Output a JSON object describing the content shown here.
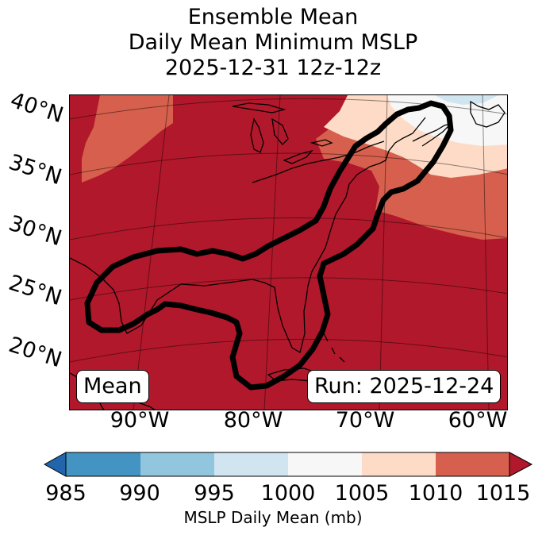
{
  "title": {
    "line1": "Ensemble Mean",
    "line2": "Daily Mean Minimum MSLP",
    "line3": "2025-12-31 12z-12z"
  },
  "map": {
    "lat_labels": [
      "40°N",
      "35°N",
      "30°N",
      "25°N",
      "20°N"
    ],
    "lon_labels": [
      "90°W",
      "80°W",
      "70°W",
      "60°W"
    ],
    "mean_label": "Mean",
    "run_label": "Run: 2025-12-24"
  },
  "colorbar": {
    "tick_labels": [
      "985",
      "990",
      "995",
      "1000",
      "1005",
      "1010",
      "1015"
    ],
    "title": "MSLP Daily Mean (mb)",
    "colors": [
      "#2166ac",
      "#4393c3",
      "#92c5de",
      "#d1e5f0",
      "#f7f7f7",
      "#fddbc7",
      "#d6604d",
      "#b2182b"
    ]
  }
}
